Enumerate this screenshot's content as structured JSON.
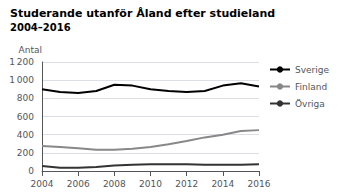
{
  "chart_data": {
    "type": "line",
    "title": "Studerande utanför Åland efter studieland",
    "subtitle": "2004–2016",
    "y_label": "Antal",
    "x": [
      2004,
      2005,
      2006,
      2007,
      2008,
      2009,
      2010,
      2011,
      2012,
      2013,
      2014,
      2015,
      2016
    ],
    "series": [
      {
        "name": "Sverige",
        "color": "#000000",
        "values": [
          900,
          870,
          860,
          880,
          950,
          940,
          900,
          880,
          870,
          880,
          940,
          965,
          930
        ]
      },
      {
        "name": "Finland",
        "color": "#888888",
        "values": [
          275,
          265,
          250,
          235,
          235,
          245,
          265,
          295,
          330,
          370,
          400,
          440,
          450
        ]
      },
      {
        "name": "Övriga",
        "color": "#333333",
        "values": [
          55,
          35,
          35,
          45,
          60,
          70,
          75,
          75,
          75,
          70,
          70,
          70,
          75
        ]
      }
    ],
    "xlim": [
      2004,
      2016
    ],
    "xticks": [
      2004,
      2006,
      2008,
      2010,
      2012,
      2014,
      2016
    ],
    "ylim": [
      0,
      1200
    ],
    "yticks": [
      0,
      200,
      400,
      600,
      800,
      {
        "value": 1000,
        "label": "1 000"
      },
      {
        "value": 1200,
        "label": "1 200"
      }
    ],
    "grid": true,
    "legend": "right"
  }
}
